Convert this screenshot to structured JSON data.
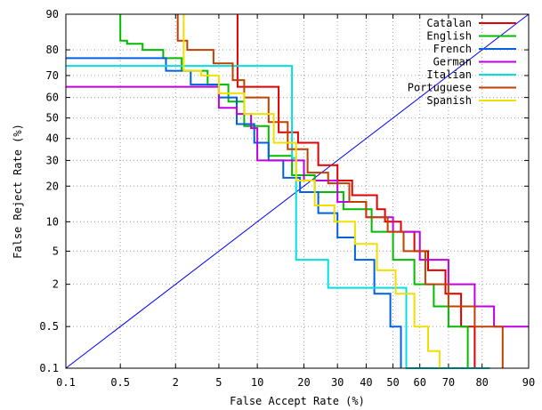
{
  "chart_data": {
    "type": "line",
    "title": "",
    "xlabel": "False Accept Rate (%)",
    "ylabel": "False Reject Rate (%)",
    "x_scale": "probit",
    "y_scale": "probit",
    "xlim": [
      0.1,
      90
    ],
    "ylim": [
      0.1,
      90
    ],
    "grid": true,
    "legend_position": "top-right",
    "x_ticks": [
      "0.1",
      "0.5",
      "2",
      "5",
      "10",
      "20",
      "30",
      "40",
      "50",
      "60",
      "70",
      "80",
      "90"
    ],
    "y_ticks": [
      "0.1",
      "0.5",
      "2",
      "5",
      "10",
      "20",
      "30",
      "40",
      "50",
      "60",
      "70",
      "80",
      "90"
    ],
    "reference_line": {
      "name": "",
      "color": "#0000ff",
      "x": [
        0.1,
        90
      ],
      "y": [
        0.1,
        90
      ]
    },
    "series": [
      {
        "name": "Catalan",
        "color": "#e00000",
        "x": [
          7.1,
          7.1,
          14,
          14,
          18.5,
          18.5,
          24,
          24,
          30,
          30,
          35,
          35,
          44,
          44,
          47,
          47,
          53,
          53,
          58,
          58,
          63,
          63,
          69,
          69,
          74,
          74,
          78,
          78
        ],
        "y": [
          90,
          65,
          65,
          43,
          43,
          38,
          38,
          28,
          28,
          22,
          22,
          17,
          17,
          13,
          13,
          10,
          10,
          8,
          8,
          5,
          5,
          3,
          3,
          1.5,
          1.5,
          0.5,
          0.5,
          0.1
        ]
      },
      {
        "name": "English",
        "color": "#00bb00",
        "x": [
          0.5,
          0.5,
          0.6,
          0.6,
          0.9,
          0.9,
          1.5,
          1.5,
          2.3,
          2.3,
          4,
          4,
          6,
          6,
          8,
          8,
          12,
          12,
          17,
          17,
          23,
          23,
          32,
          32,
          42,
          42,
          50,
          50,
          58,
          58,
          65,
          65,
          70,
          70,
          76,
          76
        ],
        "y": [
          90,
          83,
          83,
          82,
          82,
          80,
          80,
          77,
          77,
          72,
          72,
          66,
          66,
          58,
          58,
          46,
          46,
          32,
          32,
          24,
          24,
          18,
          18,
          13,
          13,
          8,
          8,
          4,
          4,
          2,
          2,
          1,
          1,
          0.5,
          0.5,
          0.1
        ]
      },
      {
        "name": "French",
        "color": "#0060e0",
        "x": [
          0.1,
          1.6,
          1.6,
          2.8,
          2.8,
          5,
          5,
          7,
          7,
          9.5,
          9.5,
          12,
          12,
          15,
          15,
          19,
          19,
          24,
          24,
          30,
          30,
          36,
          36,
          43,
          43,
          49,
          49,
          53,
          53
        ],
        "y": [
          77,
          77,
          72,
          72,
          66,
          66,
          60,
          60,
          47,
          47,
          38,
          38,
          30,
          30,
          23,
          23,
          18,
          18,
          12,
          12,
          7,
          7,
          4,
          4,
          1.5,
          1.5,
          0.5,
          0.5,
          0.1
        ]
      },
      {
        "name": "German",
        "color": "#c000e0",
        "x": [
          0.1,
          5,
          5,
          7,
          7,
          9,
          9,
          10,
          10,
          20,
          20,
          30,
          30,
          40,
          40,
          50,
          50,
          60,
          60,
          70,
          70,
          78,
          78,
          83,
          83,
          90
        ],
        "y": [
          65,
          65,
          55,
          55,
          52,
          52,
          45,
          45,
          30,
          30,
          22,
          22,
          15,
          15,
          11,
          11,
          8,
          8,
          4,
          4,
          2,
          2,
          1,
          1,
          0.5,
          0.5
        ]
      },
      {
        "name": "Italian",
        "color": "#00e0e0",
        "x": [
          0.1,
          7,
          7,
          17,
          17,
          18,
          18,
          27,
          27,
          55,
          55,
          82,
          82
        ],
        "y": [
          74,
          74,
          74,
          74,
          31,
          31,
          4,
          4,
          1.8,
          1.8,
          0.1,
          0.1,
          0.1
        ]
      },
      {
        "name": "Portuguese",
        "color": "#c04000",
        "x": [
          2.1,
          2.1,
          2.6,
          2.6,
          4.5,
          4.5,
          6.5,
          6.5,
          8,
          8,
          12,
          12,
          16,
          16,
          21,
          21,
          27,
          27,
          34,
          34,
          40,
          40,
          48,
          48,
          54,
          54,
          62,
          62,
          70,
          70,
          78,
          78,
          85,
          85
        ],
        "y": [
          90,
          83,
          83,
          80,
          80,
          75,
          75,
          68,
          68,
          60,
          60,
          48,
          48,
          35,
          35,
          25,
          25,
          21,
          21,
          15,
          15,
          11,
          11,
          8,
          8,
          5,
          5,
          2,
          2,
          1,
          1,
          0.5,
          0.5,
          0.1
        ]
      },
      {
        "name": "Spanish",
        "color": "#f0e000",
        "x": [
          2.4,
          2.4,
          3.5,
          3.5,
          5,
          5,
          8,
          8,
          13,
          13,
          18,
          18,
          23,
          23,
          29,
          29,
          36,
          36,
          44,
          44,
          51,
          51,
          58,
          58,
          63,
          63,
          67,
          67
        ],
        "y": [
          90,
          72,
          72,
          70,
          70,
          62,
          62,
          52,
          52,
          38,
          38,
          22,
          22,
          14,
          14,
          10,
          10,
          6,
          6,
          3,
          3,
          1.5,
          1.5,
          0.5,
          0.5,
          0.2,
          0.2,
          0.1
        ]
      }
    ]
  }
}
